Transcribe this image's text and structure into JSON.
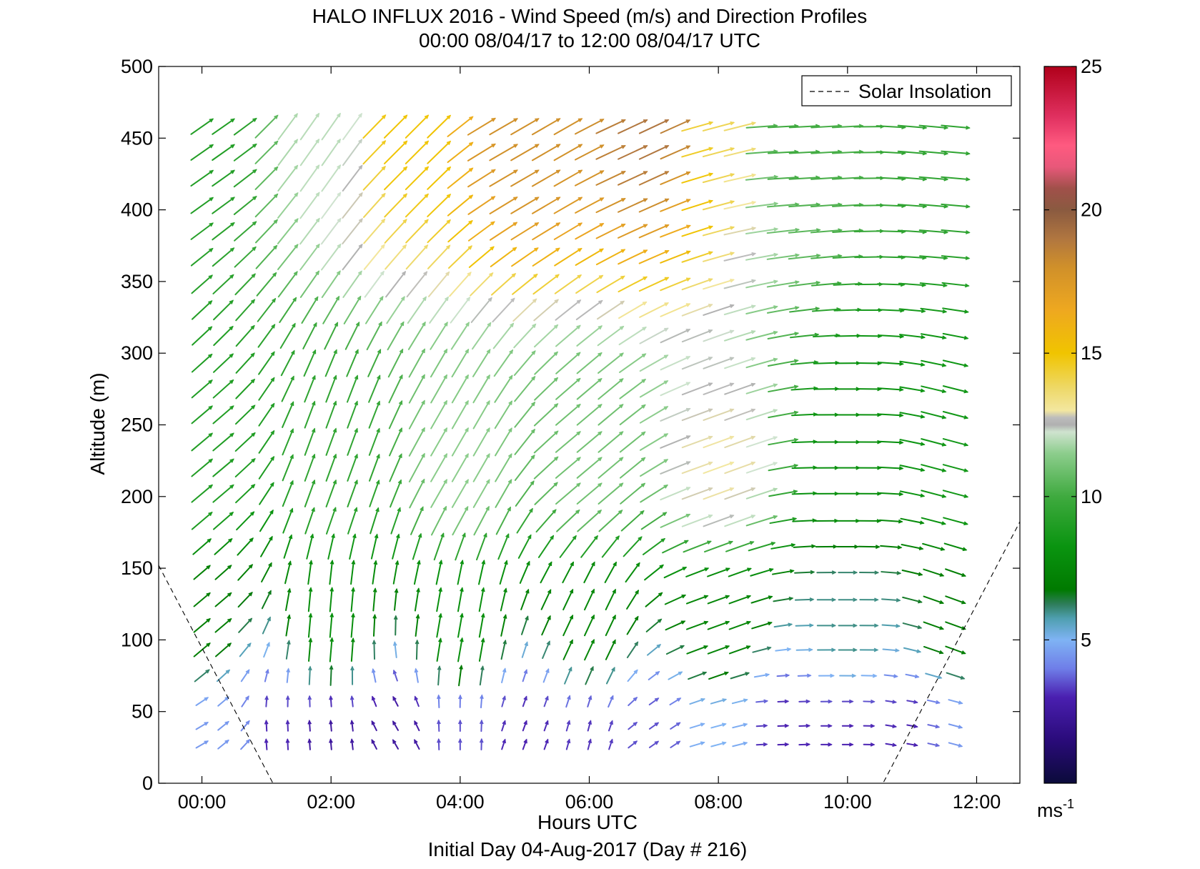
{
  "chart_data": {
    "type": "wind-barb-profile",
    "title": "HALO INFLUX 2016 - Wind Speed (m/s) and Direction Profiles",
    "subtitle": "00:00 08/04/17 to 12:00 08/04/17  UTC",
    "xlabel": "Hours UTC",
    "xlabel2": "Initial Day 04-Aug-2017 (Day # 216)",
    "ylabel": "Altitude (m)",
    "xlim": [
      -0.67,
      12.67
    ],
    "ylim": [
      0,
      500
    ],
    "x_ticks": [
      0,
      2,
      4,
      6,
      8,
      10,
      12
    ],
    "x_tick_labels": [
      "00:00",
      "02:00",
      "04:00",
      "06:00",
      "08:00",
      "10:00",
      "12:00"
    ],
    "y_ticks": [
      0,
      50,
      100,
      150,
      200,
      250,
      300,
      350,
      400,
      450,
      500
    ],
    "y_tick_labels": [
      "0",
      "50",
      "100",
      "150",
      "200",
      "250",
      "300",
      "350",
      "400",
      "450",
      "500"
    ],
    "legend": {
      "label": "Solar Insolation",
      "position": "top-right"
    },
    "colorbar": {
      "min": 0,
      "max": 25,
      "ticks": [
        5,
        10,
        15,
        20,
        25
      ],
      "tick_labels": [
        "5",
        "10",
        "15",
        "20",
        "25"
      ],
      "unit_base": "ms",
      "unit_exp": "-1"
    },
    "solar_insolation": [
      [
        -0.67,
        152
      ],
      [
        1.1,
        0
      ],
      [
        10.55,
        0
      ],
      [
        12.7,
        185
      ]
    ],
    "altitudes": [
      27,
      40,
      57,
      75,
      93,
      110,
      128,
      147,
      165,
      183,
      202,
      220,
      238,
      257,
      275,
      293,
      312,
      330,
      348,
      367,
      385,
      403,
      422,
      440,
      458
    ],
    "times": [
      0,
      0.33,
      0.67,
      1.0,
      1.33,
      1.67,
      2.0,
      2.33,
      2.67,
      3.0,
      3.33,
      3.67,
      4.0,
      4.33,
      4.67,
      5.0,
      5.33,
      5.67,
      6.0,
      6.33,
      6.67,
      7.0,
      7.33,
      7.67,
      8.0,
      8.33,
      8.67,
      9.0,
      9.33,
      9.67,
      10.0,
      10.33,
      10.67,
      11.0,
      11.33,
      11.67
    ],
    "wind_field": {
      "description_of_values": "direction_deg is direction toward which vector points (math angle, 0=east, 90=north); speed in m/s",
      "anchor_points": [
        {
          "t": 0,
          "z": 27,
          "speed": 4.5,
          "dir": 30
        },
        {
          "t": 0.5,
          "z": 27,
          "speed": 4.5,
          "dir": 40
        },
        {
          "t": 1.0,
          "z": 27,
          "speed": 3.0,
          "dir": 95
        },
        {
          "t": 2.0,
          "z": 27,
          "speed": 2.5,
          "dir": 95
        },
        {
          "t": 3.0,
          "z": 27,
          "speed": 2.5,
          "dir": 120
        },
        {
          "t": 4.0,
          "z": 27,
          "speed": 3.5,
          "dir": 90
        },
        {
          "t": 5.0,
          "z": 27,
          "speed": 3.0,
          "dir": 70
        },
        {
          "t": 6.0,
          "z": 27,
          "speed": 3.2,
          "dir": 75
        },
        {
          "t": 7.0,
          "z": 27,
          "speed": 3.5,
          "dir": 35
        },
        {
          "t": 8.0,
          "z": 27,
          "speed": 5.0,
          "dir": 15
        },
        {
          "t": 9.0,
          "z": 27,
          "speed": 3.0,
          "dir": 2
        },
        {
          "t": 10.0,
          "z": 27,
          "speed": 3.0,
          "dir": 0
        },
        {
          "t": 11.0,
          "z": 27,
          "speed": 3.0,
          "dir": -10
        },
        {
          "t": 11.67,
          "z": 27,
          "speed": 4.5,
          "dir": -15
        },
        {
          "t": 0,
          "z": 110,
          "speed": 7.0,
          "dir": 40
        },
        {
          "t": 2.0,
          "z": 110,
          "speed": 8.0,
          "dir": 85
        },
        {
          "t": 4.0,
          "z": 110,
          "speed": 8.0,
          "dir": 80
        },
        {
          "t": 6.0,
          "z": 110,
          "speed": 7.5,
          "dir": 65
        },
        {
          "t": 8.0,
          "z": 110,
          "speed": 7.5,
          "dir": 20
        },
        {
          "t": 10.0,
          "z": 110,
          "speed": 6.0,
          "dir": 0
        },
        {
          "t": 11.67,
          "z": 110,
          "speed": 7.0,
          "dir": -20
        },
        {
          "t": 0,
          "z": 220,
          "speed": 9.0,
          "dir": 40
        },
        {
          "t": 2.0,
          "z": 220,
          "speed": 9.5,
          "dir": 70
        },
        {
          "t": 4.0,
          "z": 220,
          "speed": 11.5,
          "dir": 60
        },
        {
          "t": 6.0,
          "z": 220,
          "speed": 11.0,
          "dir": 40
        },
        {
          "t": 8.0,
          "z": 220,
          "speed": 13.0,
          "dir": 20
        },
        {
          "t": 10.0,
          "z": 220,
          "speed": 8.0,
          "dir": 0
        },
        {
          "t": 11.67,
          "z": 220,
          "speed": 8.5,
          "dir": -15
        },
        {
          "t": 0,
          "z": 458,
          "speed": 9.0,
          "dir": 35
        },
        {
          "t": 2.0,
          "z": 458,
          "speed": 12.0,
          "dir": 55
        },
        {
          "t": 3.0,
          "z": 458,
          "speed": 15.0,
          "dir": 45
        },
        {
          "t": 5.0,
          "z": 458,
          "speed": 18.0,
          "dir": 30
        },
        {
          "t": 7.0,
          "z": 458,
          "speed": 19.0,
          "dir": 25
        },
        {
          "t": 8.0,
          "z": 458,
          "speed": 14.0,
          "dir": 15
        },
        {
          "t": 9.0,
          "z": 458,
          "speed": 10.0,
          "dir": 3
        },
        {
          "t": 11.67,
          "z": 458,
          "speed": 9.5,
          "dir": -5
        }
      ]
    }
  }
}
